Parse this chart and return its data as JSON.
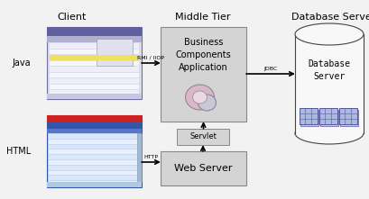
{
  "background_color": "#f2f2f2",
  "title_client": "Client",
  "title_middle": "Middle Tier",
  "title_db": "Database Server",
  "label_java": "Java",
  "label_html": "HTML",
  "label_rmi": "RMI / IIOP",
  "label_http": "HTTP",
  "label_jdbc": "JDBC",
  "label_bca": "Business\nComponents\nApplication",
  "label_servlet": "Servlet",
  "label_webserver": "Web Server",
  "label_dbserver": "Database\nServer",
  "box_fill": "#d4d4d4",
  "box_edge": "#888888",
  "text_color": "#000000",
  "line_color": "#000000",
  "java_win_bg": "#dddcec",
  "java_titlebar": "#6060a0",
  "java_row_a": "#eeeef8",
  "java_row_b": "#f6f6ff",
  "java_row_hi": "#f0e060",
  "html_win_bg": "#c8d8f0",
  "html_titlebar_red": "#cc2222",
  "html_nav_bar": "#3355aa",
  "html_row_a": "#d8e8f8",
  "html_row_b": "#e8f0ff",
  "cyl_fill": "#f8f8f8",
  "cyl_edge": "#444444",
  "icon_fill": "#aabbdd",
  "icon_edge": "#555599"
}
